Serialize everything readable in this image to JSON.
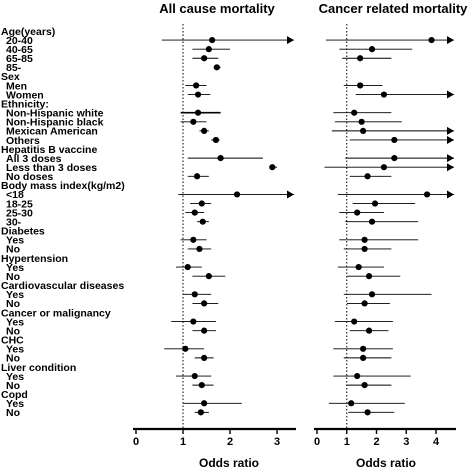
{
  "chart_data": [
    {
      "type": "forest",
      "title": "All cause mortality",
      "xlabel": "Odds ratio",
      "xlim": [
        0,
        3
      ],
      "xticks": [
        0,
        1,
        2,
        3
      ],
      "reference_line": 1,
      "rows": [
        {
          "label": "Age(years)",
          "header": true
        },
        {
          "label": "20-40",
          "or": 1.62,
          "lo": 0.55,
          "hi": 3.25,
          "arrow": true
        },
        {
          "label": "40-65",
          "or": 1.55,
          "lo": 1.2,
          "hi": 2.0
        },
        {
          "label": "65-85",
          "or": 1.45,
          "lo": 1.2,
          "hi": 1.75
        },
        {
          "label": "85-",
          "or": 1.72,
          "lo": 1.65,
          "hi": 1.8
        },
        {
          "label": "Sex",
          "header": true
        },
        {
          "label": "Men",
          "or": 1.28,
          "lo": 1.05,
          "hi": 1.5
        },
        {
          "label": "Women",
          "or": 1.32,
          "lo": 1.1,
          "hi": 1.58
        },
        {
          "label": "Ethnicity:",
          "header": true
        },
        {
          "label": "Non-Hispanic white",
          "or": 1.32,
          "lo": 0.95,
          "hi": 1.8
        },
        {
          "label": "Non-Hispanic black",
          "or": 1.22,
          "lo": 0.95,
          "hi": 1.5
        },
        {
          "label": "Mexican American",
          "or": 1.45,
          "lo": 1.35,
          "hi": 1.55
        },
        {
          "label": "Others",
          "or": 1.7,
          "lo": 1.6,
          "hi": 1.78
        },
        {
          "label": "Hepatitis B vaccine",
          "header": true
        },
        {
          "label": "All 3 doses",
          "or": 1.8,
          "lo": 1.1,
          "hi": 2.7
        },
        {
          "label": "Less than 3 doses",
          "or": 2.9,
          "lo": 2.85,
          "hi": 3.0
        },
        {
          "label": "No doses",
          "or": 1.3,
          "lo": 1.1,
          "hi": 1.55
        },
        {
          "label": "Body mass index(kg/m2)",
          "header": true
        },
        {
          "label": "<18",
          "or": 2.15,
          "lo": 0.9,
          "hi": 3.25,
          "arrow": true
        },
        {
          "label": "18-25",
          "or": 1.4,
          "lo": 1.15,
          "hi": 1.6
        },
        {
          "label": "25-30",
          "or": 1.25,
          "lo": 1.05,
          "hi": 1.45
        },
        {
          "label": "30-",
          "or": 1.42,
          "lo": 1.3,
          "hi": 1.55
        },
        {
          "label": "Diabetes",
          "header": true
        },
        {
          "label": "Yes",
          "or": 1.22,
          "lo": 0.95,
          "hi": 1.5
        },
        {
          "label": "No",
          "or": 1.35,
          "lo": 1.1,
          "hi": 1.6
        },
        {
          "label": "Hypertension",
          "header": true
        },
        {
          "label": "Yes",
          "or": 1.1,
          "lo": 0.85,
          "hi": 1.4
        },
        {
          "label": "No",
          "or": 1.55,
          "lo": 1.2,
          "hi": 1.9
        },
        {
          "label": "Cardiovascular diseases",
          "header": true
        },
        {
          "label": "Yes",
          "or": 1.25,
          "lo": 1.0,
          "hi": 1.6
        },
        {
          "label": "No",
          "or": 1.45,
          "lo": 1.2,
          "hi": 1.75
        },
        {
          "label": "Cancer or malignancy",
          "header": true
        },
        {
          "label": "Yes",
          "or": 1.22,
          "lo": 0.75,
          "hi": 1.7
        },
        {
          "label": "No",
          "or": 1.45,
          "lo": 1.2,
          "hi": 1.7
        },
        {
          "label": "CHC",
          "header": true
        },
        {
          "label": "Yes",
          "or": 1.05,
          "lo": 0.6,
          "hi": 1.45
        },
        {
          "label": "No",
          "or": 1.45,
          "lo": 1.25,
          "hi": 1.65
        },
        {
          "label": "Liver condition",
          "header": true
        },
        {
          "label": "Yes",
          "or": 1.25,
          "lo": 0.85,
          "hi": 1.6
        },
        {
          "label": "No",
          "or": 1.4,
          "lo": 1.2,
          "hi": 1.65
        },
        {
          "label": "Copd",
          "header": true
        },
        {
          "label": "Yes",
          "or": 1.45,
          "lo": 1.0,
          "hi": 2.25
        },
        {
          "label": "No",
          "or": 1.38,
          "lo": 1.25,
          "hi": 1.55
        }
      ]
    },
    {
      "type": "forest",
      "title": "Cancer related mortality",
      "xlabel": "Odds ratio",
      "xlim": [
        0,
        4
      ],
      "xticks": [
        0,
        1,
        2,
        3,
        4
      ],
      "reference_line": 1,
      "rows": [
        {
          "label": "Age(years)",
          "header": true
        },
        {
          "label": "20-40",
          "or": 3.85,
          "lo": 0.3,
          "hi": 4.3,
          "arrow": true
        },
        {
          "label": "40-65",
          "or": 1.85,
          "lo": 0.75,
          "hi": 3.2
        },
        {
          "label": "65-85",
          "or": 1.45,
          "lo": 0.85,
          "hi": 2.5
        },
        {
          "label": "85-",
          "or": null
        },
        {
          "label": "Sex",
          "header": true
        },
        {
          "label": "Men",
          "or": 1.45,
          "lo": 0.9,
          "hi": 2.2
        },
        {
          "label": "Women",
          "or": 2.25,
          "lo": 1.3,
          "hi": 4.3,
          "arrow": true
        },
        {
          "label": "Ethnicity:",
          "header": true
        },
        {
          "label": "Non-Hispanic white",
          "or": 1.25,
          "lo": 0.55,
          "hi": 2.5
        },
        {
          "label": "Non-Hispanic black",
          "or": 1.5,
          "lo": 0.6,
          "hi": 2.85
        },
        {
          "label": "Mexican American",
          "or": 1.55,
          "lo": 0.5,
          "hi": 4.3,
          "arrow": true
        },
        {
          "label": "Others",
          "or": 2.6,
          "lo": 1.1,
          "hi": 4.3,
          "arrow": true
        },
        {
          "label": "Hepatitis B vaccine",
          "header": true
        },
        {
          "label": "All 3 doses",
          "or": 2.6,
          "lo": 0.95,
          "hi": 4.3,
          "arrow": true
        },
        {
          "label": "Less than 3 doses",
          "or": 2.25,
          "lo": 0.25,
          "hi": 4.3,
          "arrow": true
        },
        {
          "label": "No doses",
          "or": 1.7,
          "lo": 1.1,
          "hi": 2.5
        },
        {
          "label": "Body mass index(kg/m2)",
          "header": true
        },
        {
          "label": "<18",
          "or": 3.7,
          "lo": 0.7,
          "hi": 4.3,
          "arrow": true
        },
        {
          "label": "18-25",
          "or": 1.95,
          "lo": 1.2,
          "hi": 3.3
        },
        {
          "label": "25-30",
          "or": 1.35,
          "lo": 0.75,
          "hi": 2.25
        },
        {
          "label": "30-",
          "or": 1.85,
          "lo": 0.95,
          "hi": 3.4
        },
        {
          "label": "Diabetes",
          "header": true
        },
        {
          "label": "Yes",
          "or": 1.6,
          "lo": 0.75,
          "hi": 3.4
        },
        {
          "label": "No",
          "or": 1.6,
          "lo": 0.9,
          "hi": 2.5
        },
        {
          "label": "Hypertension",
          "header": true
        },
        {
          "label": "Yes",
          "or": 1.4,
          "lo": 0.7,
          "hi": 2.25
        },
        {
          "label": "No",
          "or": 1.75,
          "lo": 1.0,
          "hi": 2.8
        },
        {
          "label": "Cardiovascular diseases",
          "header": true
        },
        {
          "label": "Yes",
          "or": 1.85,
          "lo": 0.9,
          "hi": 3.85
        },
        {
          "label": "No",
          "or": 1.6,
          "lo": 1.0,
          "hi": 2.45
        },
        {
          "label": "Cancer or malignancy",
          "header": true
        },
        {
          "label": "Yes",
          "or": 1.25,
          "lo": 0.6,
          "hi": 2.55
        },
        {
          "label": "No",
          "or": 1.75,
          "lo": 1.1,
          "hi": 2.4
        },
        {
          "label": "CHC",
          "header": true
        },
        {
          "label": "Yes",
          "or": 1.55,
          "lo": 0.55,
          "hi": 2.55
        },
        {
          "label": "No",
          "or": 1.55,
          "lo": 0.9,
          "hi": 2.5
        },
        {
          "label": "Liver condition",
          "header": true
        },
        {
          "label": "Yes",
          "or": 1.35,
          "lo": 0.55,
          "hi": 3.15
        },
        {
          "label": "No",
          "or": 1.6,
          "lo": 1.0,
          "hi": 2.5
        },
        {
          "label": "Copd",
          "header": true
        },
        {
          "label": "Yes",
          "or": 1.15,
          "lo": 0.4,
          "hi": 2.95
        },
        {
          "label": "No",
          "or": 1.7,
          "lo": 1.05,
          "hi": 2.6
        }
      ]
    }
  ]
}
